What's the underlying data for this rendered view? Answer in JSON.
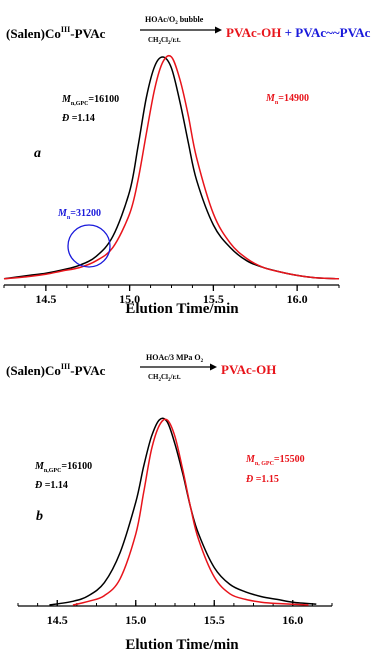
{
  "colors": {
    "black": "#000000",
    "red": "#e8141b",
    "blue": "#1a1adb"
  },
  "chart_data": [
    {
      "type": "line",
      "panel_label": "a",
      "xlabel": "Elution Time/min",
      "ylabel": "",
      "xlim": [
        14.25,
        16.25
      ],
      "ylim": [
        0,
        1.0
      ],
      "x_ticks": [
        "14.5",
        "15.0",
        "15.5",
        "16.0"
      ],
      "scheme": {
        "reactant": "(Salen)Co",
        "reactant_sup": "III",
        "reactant_suffix": "-PVAc",
        "arrow_top": "HOAc/O",
        "arrow_top_sub": "2",
        "arrow_top_suffix": " bubble",
        "arrow_bottom": "CH",
        "arrow_bottom_sub1": "2",
        "arrow_bottom_mid": "Cl",
        "arrow_bottom_sub2": "2",
        "arrow_bottom_suffix": "/r.t.",
        "product1": "PVAc-OH",
        "plus": " + ",
        "product2": "PVAc~~PVAc"
      },
      "annotations": [
        {
          "color": "black",
          "prefix": "M",
          "sub": "n,GPC",
          "value": "=16100"
        },
        {
          "color": "black",
          "prefix": "Đ",
          "sub": "",
          "value": " =1.14"
        },
        {
          "color": "red",
          "prefix": "M",
          "sub": "n",
          "value": "=14900"
        },
        {
          "color": "blue",
          "prefix": "M",
          "sub": "n",
          "value": "=31200"
        }
      ],
      "series": [
        {
          "color": "black",
          "x": [
            14.25,
            14.4,
            14.5,
            14.6,
            14.7,
            14.8,
            14.9,
            15.0,
            15.05,
            15.1,
            15.15,
            15.2,
            15.25,
            15.3,
            15.35,
            15.4,
            15.5,
            15.6,
            15.7,
            15.8,
            15.9,
            16.0,
            16.1,
            16.25
          ],
          "y": [
            0.01,
            0.025,
            0.035,
            0.05,
            0.07,
            0.11,
            0.2,
            0.4,
            0.6,
            0.82,
            0.96,
            1.0,
            0.95,
            0.8,
            0.62,
            0.45,
            0.25,
            0.15,
            0.09,
            0.06,
            0.04,
            0.025,
            0.015,
            0.01
          ]
        },
        {
          "color": "red",
          "x": [
            14.25,
            14.4,
            14.5,
            14.6,
            14.7,
            14.8,
            14.9,
            15.0,
            15.05,
            15.1,
            15.15,
            15.2,
            15.25,
            15.3,
            15.35,
            15.4,
            15.5,
            15.6,
            15.7,
            15.8,
            15.9,
            16.0,
            16.1,
            16.25
          ],
          "y": [
            0.01,
            0.02,
            0.03,
            0.045,
            0.06,
            0.09,
            0.15,
            0.3,
            0.45,
            0.66,
            0.86,
            0.98,
            1.0,
            0.9,
            0.74,
            0.55,
            0.3,
            0.17,
            0.1,
            0.06,
            0.04,
            0.025,
            0.015,
            0.01
          ]
        }
      ]
    },
    {
      "type": "line",
      "panel_label": "b",
      "xlabel": "Elution Time/min",
      "ylabel": "",
      "xlim": [
        14.25,
        16.25
      ],
      "ylim": [
        0,
        1.0
      ],
      "x_ticks": [
        "14.5",
        "15.0",
        "15.5",
        "16.0"
      ],
      "scheme": {
        "reactant": "(Salen)Co",
        "reactant_sup": "III",
        "reactant_suffix": "-PVAc",
        "arrow_top": "HOAc/3 MPa O",
        "arrow_top_sub": "2",
        "arrow_bottom": "CH",
        "arrow_bottom_sub1": "2",
        "arrow_bottom_mid": "Cl",
        "arrow_bottom_sub2": "2",
        "arrow_bottom_suffix": "/r.t.",
        "product1": "PVAc-OH"
      },
      "annotations": [
        {
          "color": "black",
          "prefix": "M",
          "sub": "n,GPC",
          "value": "=16100"
        },
        {
          "color": "black",
          "prefix": "Đ",
          "sub": "",
          "value": " =1.14"
        },
        {
          "color": "red",
          "prefix": "M",
          "sub": "n, GPC",
          "value": "=15500"
        },
        {
          "color": "red",
          "prefix": "Đ",
          "sub": "",
          "value": " =1.15"
        }
      ],
      "series": [
        {
          "color": "black",
          "x": [
            14.45,
            14.6,
            14.7,
            14.8,
            14.9,
            15.0,
            15.05,
            15.1,
            15.15,
            15.2,
            15.25,
            15.3,
            15.35,
            15.4,
            15.5,
            15.6,
            15.7,
            15.8,
            15.9,
            16.0,
            16.15
          ],
          "y": [
            0.0,
            0.02,
            0.05,
            0.12,
            0.28,
            0.55,
            0.74,
            0.9,
            0.99,
            0.98,
            0.86,
            0.7,
            0.52,
            0.38,
            0.2,
            0.11,
            0.07,
            0.045,
            0.03,
            0.015,
            0.005
          ]
        },
        {
          "color": "red",
          "x": [
            14.6,
            14.7,
            14.8,
            14.9,
            15.0,
            15.05,
            15.1,
            15.15,
            15.2,
            15.25,
            15.3,
            15.35,
            15.4,
            15.5,
            15.6,
            15.7,
            15.8,
            15.9,
            16.0,
            16.1
          ],
          "y": [
            0.0,
            0.02,
            0.05,
            0.14,
            0.38,
            0.6,
            0.83,
            0.96,
            0.99,
            0.9,
            0.72,
            0.52,
            0.35,
            0.15,
            0.06,
            0.03,
            0.015,
            0.008,
            0.004,
            0.0
          ]
        }
      ]
    }
  ]
}
